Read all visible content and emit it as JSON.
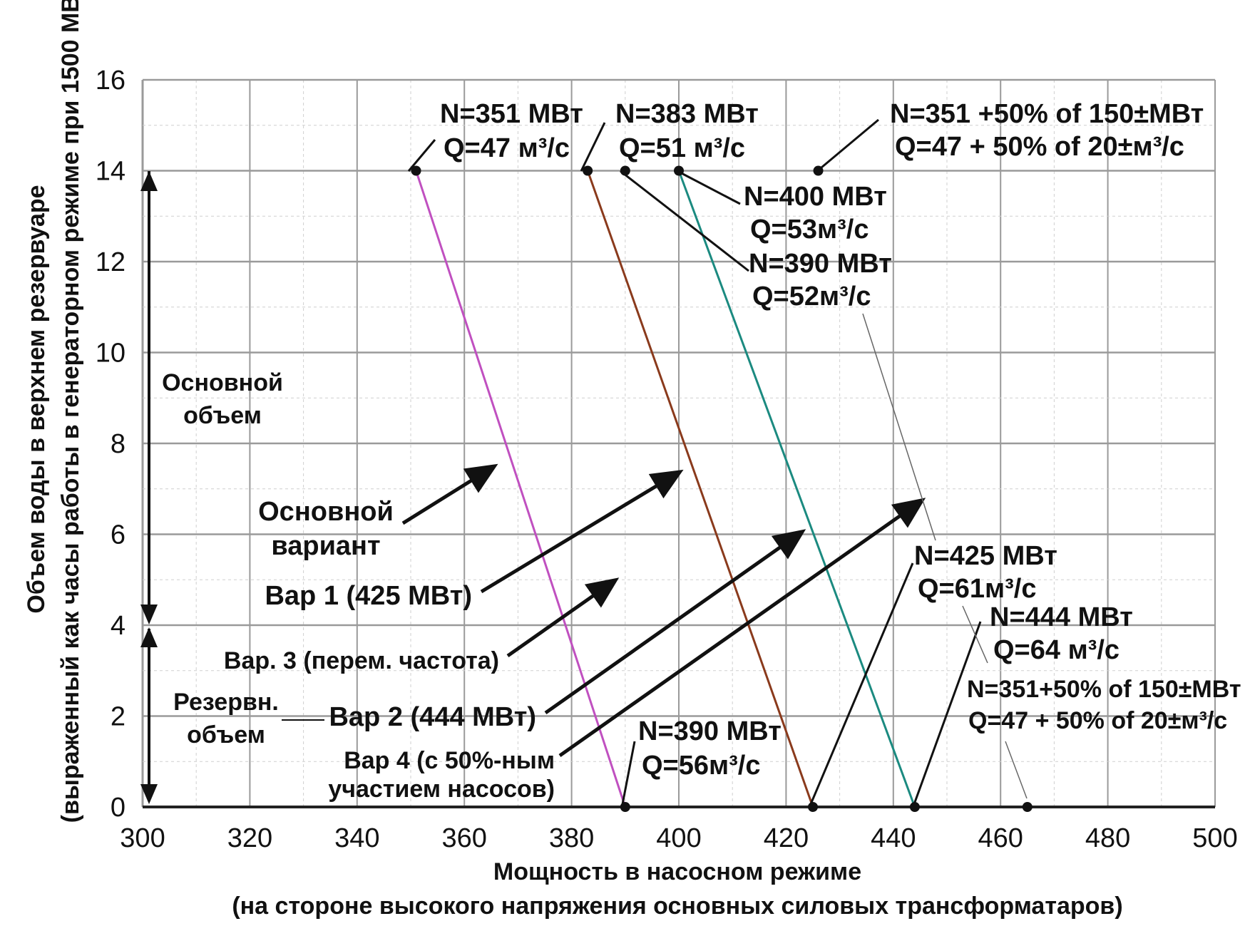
{
  "chart_data": {
    "type": "line",
    "xlabel": "Мощность в насосном режиме",
    "xlabel2": "(на стороне высокого напряжения основных силовых трансформатаров)",
    "ylabel": "Объем воды в верхнем резервуаре",
    "ylabel2": "(выраженный как часы работы в генераторном режиме при 1500 МВт)",
    "xlim": [
      300,
      500
    ],
    "ylim": [
      0,
      16
    ],
    "x_ticks": [
      "300",
      "320",
      "340",
      "360",
      "380",
      "400",
      "420",
      "440",
      "460",
      "480",
      "500"
    ],
    "y_ticks": [
      "0",
      "2",
      "4",
      "6",
      "8",
      "10",
      "12",
      "14",
      "16"
    ],
    "grid": true,
    "colors": {
      "grid": "#9a9a9a",
      "pink": "#c050c0",
      "brown": "#8a3a1c",
      "teal": "#1b8a80",
      "black": "#111111"
    },
    "series": [
      {
        "color": "pink",
        "points": [
          [
            351,
            14
          ],
          [
            390,
            0
          ]
        ]
      },
      {
        "color": "brown",
        "points": [
          [
            383,
            14
          ],
          [
            425,
            0
          ]
        ]
      },
      {
        "color": "teal",
        "points": [
          [
            400,
            14
          ],
          [
            444,
            0
          ]
        ]
      }
    ],
    "markers": [
      {
        "x": 351,
        "y": 14
      },
      {
        "x": 383,
        "y": 14
      },
      {
        "x": 390,
        "y": 14
      },
      {
        "x": 400,
        "y": 14
      },
      {
        "x": 426,
        "y": 14
      },
      {
        "x": 390,
        "y": 0
      },
      {
        "x": 425,
        "y": 0
      },
      {
        "x": 444,
        "y": 0
      },
      {
        "x": 465,
        "y": 0
      }
    ],
    "annotations": {
      "a1_n": "N=351 МВт",
      "a1_q": "Q=47 м³/с",
      "a2_n": "N=383 МВт",
      "a2_q": "Q=51 м³/с",
      "a3_n": "N=351 +50% of 150±МВт",
      "a3_q": "Q=47 + 50% of 20±м³/с",
      "a4_n": "N=400 МВт",
      "a4_q": "Q=53м³/с",
      "a5_n": "N=390 МВт",
      "a5_q": "Q=52м³/с",
      "a6_n": "N=425 МВт",
      "a6_q": "Q=61м³/с",
      "a7_n": "N=444 МВт",
      "a7_q": "Q=64 м³/с",
      "a8_n": "N=351+50% of 150±МВт",
      "a8_q": "Q=47 + 50% of 20±м³/с",
      "a9_n": "N=390 МВт",
      "a9_q": "Q=56м³/с"
    },
    "region_labels": {
      "main_1": "Основной",
      "main_2": "объем",
      "reserve_1": "Резервн.",
      "reserve_2": "объем"
    },
    "variant_labels": {
      "base_1": "Основной",
      "base_2": "вариант",
      "var1": "Вар 1 (425 МВт)",
      "var3": "Вар. 3 (перем. частота)",
      "var2": "Вар 2 (444 МВт)",
      "var4_1": "Вар 4 (с 50%-ным",
      "var4_2": "участием насосов)"
    }
  }
}
